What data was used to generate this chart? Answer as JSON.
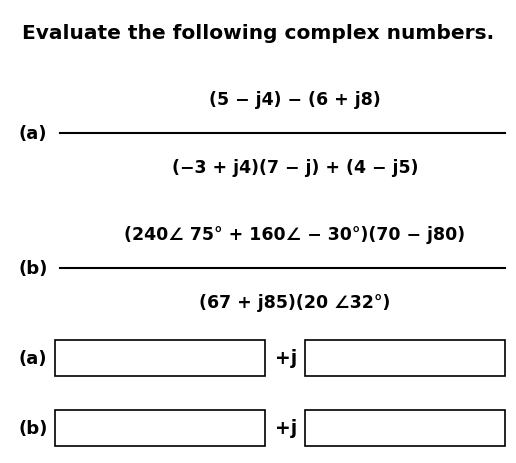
{
  "title": "Evaluate the following complex numbers.",
  "title_fontsize": 14.5,
  "title_fontweight": "bold",
  "bg_color": "#ffffff",
  "label_a": "(a)",
  "label_b": "(b)",
  "frac_a_num": "(5 − j4) − (6 + j8)",
  "frac_a_den": "(−3 + j4)(7 − j) + (4 − j5)",
  "frac_b_num": "(240∠ 75° + 160∠ − 30°)(70 − j80)",
  "frac_b_den": "(67 + j85)(20 ∠32°)",
  "answer_label_a": "(a)",
  "answer_label_b": "(b)",
  "plus_j": "+j",
  "math_fontsize": 12.5,
  "label_fontsize": 13,
  "line_color": "#000000",
  "text_color": "#000000",
  "box_color": "#000000"
}
